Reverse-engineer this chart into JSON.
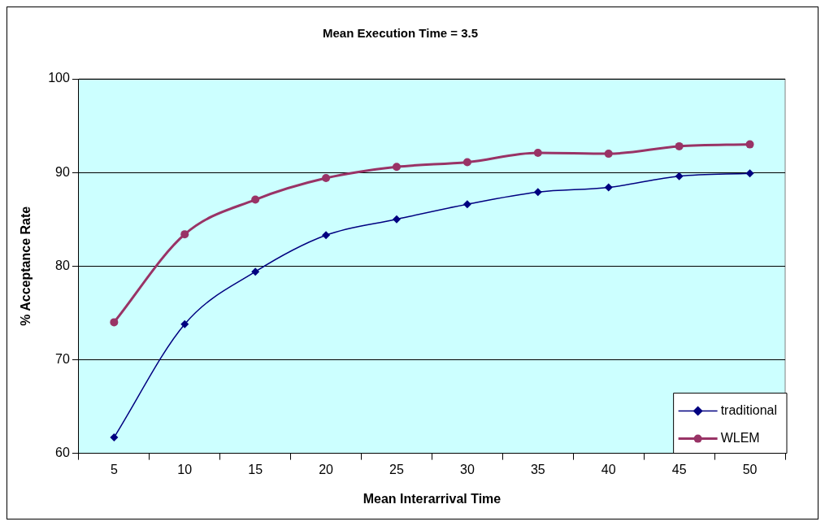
{
  "chart_data": {
    "type": "line",
    "title": "Mean Execution Time = 3.5",
    "xlabel": "Mean Interarrival Time",
    "ylabel": "% Acceptance Rate",
    "categories": [
      "5",
      "10",
      "15",
      "20",
      "25",
      "30",
      "35",
      "40",
      "45",
      "50"
    ],
    "series": [
      {
        "name": "traditional",
        "color": "#000080",
        "marker": "diamond",
        "values": [
          61.7,
          73.8,
          79.4,
          83.3,
          85.0,
          86.6,
          87.9,
          88.4,
          89.6,
          89.9
        ]
      },
      {
        "name": "WLEM",
        "color": "#993366",
        "marker": "circle",
        "values": [
          74.0,
          83.4,
          87.1,
          89.4,
          90.6,
          91.1,
          92.1,
          92.0,
          92.8,
          93.0
        ]
      }
    ],
    "ylim": [
      60,
      100
    ],
    "yticks": [
      60,
      70,
      80,
      90,
      100
    ],
    "grid": "y",
    "legend": "bottom right",
    "line_style": "solid"
  }
}
